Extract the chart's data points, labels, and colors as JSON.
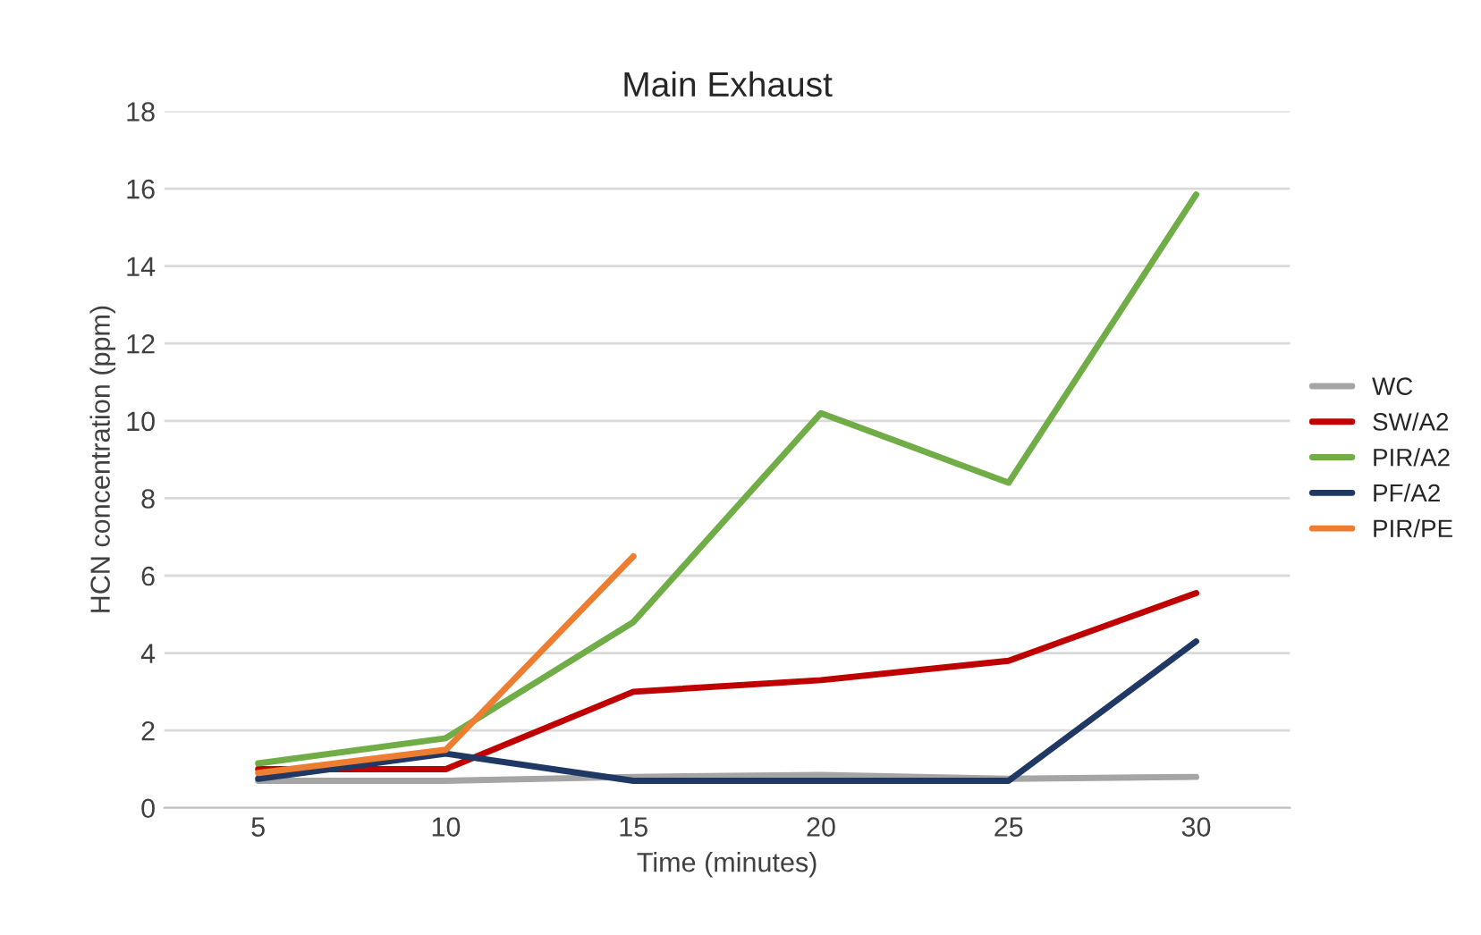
{
  "chart_data": {
    "type": "line",
    "title": "Main Exhaust",
    "xlabel": "Time (minutes)",
    "ylabel": "HCN concentration (ppm)",
    "categories": [
      "5",
      "10",
      "15",
      "20",
      "25",
      "30"
    ],
    "series": [
      {
        "name": "WC",
        "color": "#a5a5a5",
        "values": [
          0.7,
          0.7,
          0.8,
          0.85,
          0.75,
          0.8
        ]
      },
      {
        "name": "SW/A2",
        "color": "#c00000",
        "values": [
          1.0,
          1.0,
          3.0,
          3.3,
          3.8,
          5.55
        ]
      },
      {
        "name": "PIR/A2",
        "color": "#70ad47",
        "values": [
          1.15,
          1.8,
          4.8,
          10.2,
          8.4,
          15.85
        ]
      },
      {
        "name": "PF/A2",
        "color": "#203864",
        "values": [
          0.75,
          1.4,
          0.7,
          0.7,
          0.7,
          4.3
        ]
      },
      {
        "name": "PIR/PE",
        "color": "#ed7d31",
        "values": [
          0.9,
          1.5,
          6.5,
          null,
          null,
          null
        ]
      }
    ],
    "ylim": [
      0,
      18
    ],
    "yticks": [
      0,
      2,
      4,
      6,
      8,
      10,
      12,
      14,
      16,
      18
    ],
    "grid": "y",
    "legend": "right",
    "marker": "none",
    "line_style": "solid"
  }
}
